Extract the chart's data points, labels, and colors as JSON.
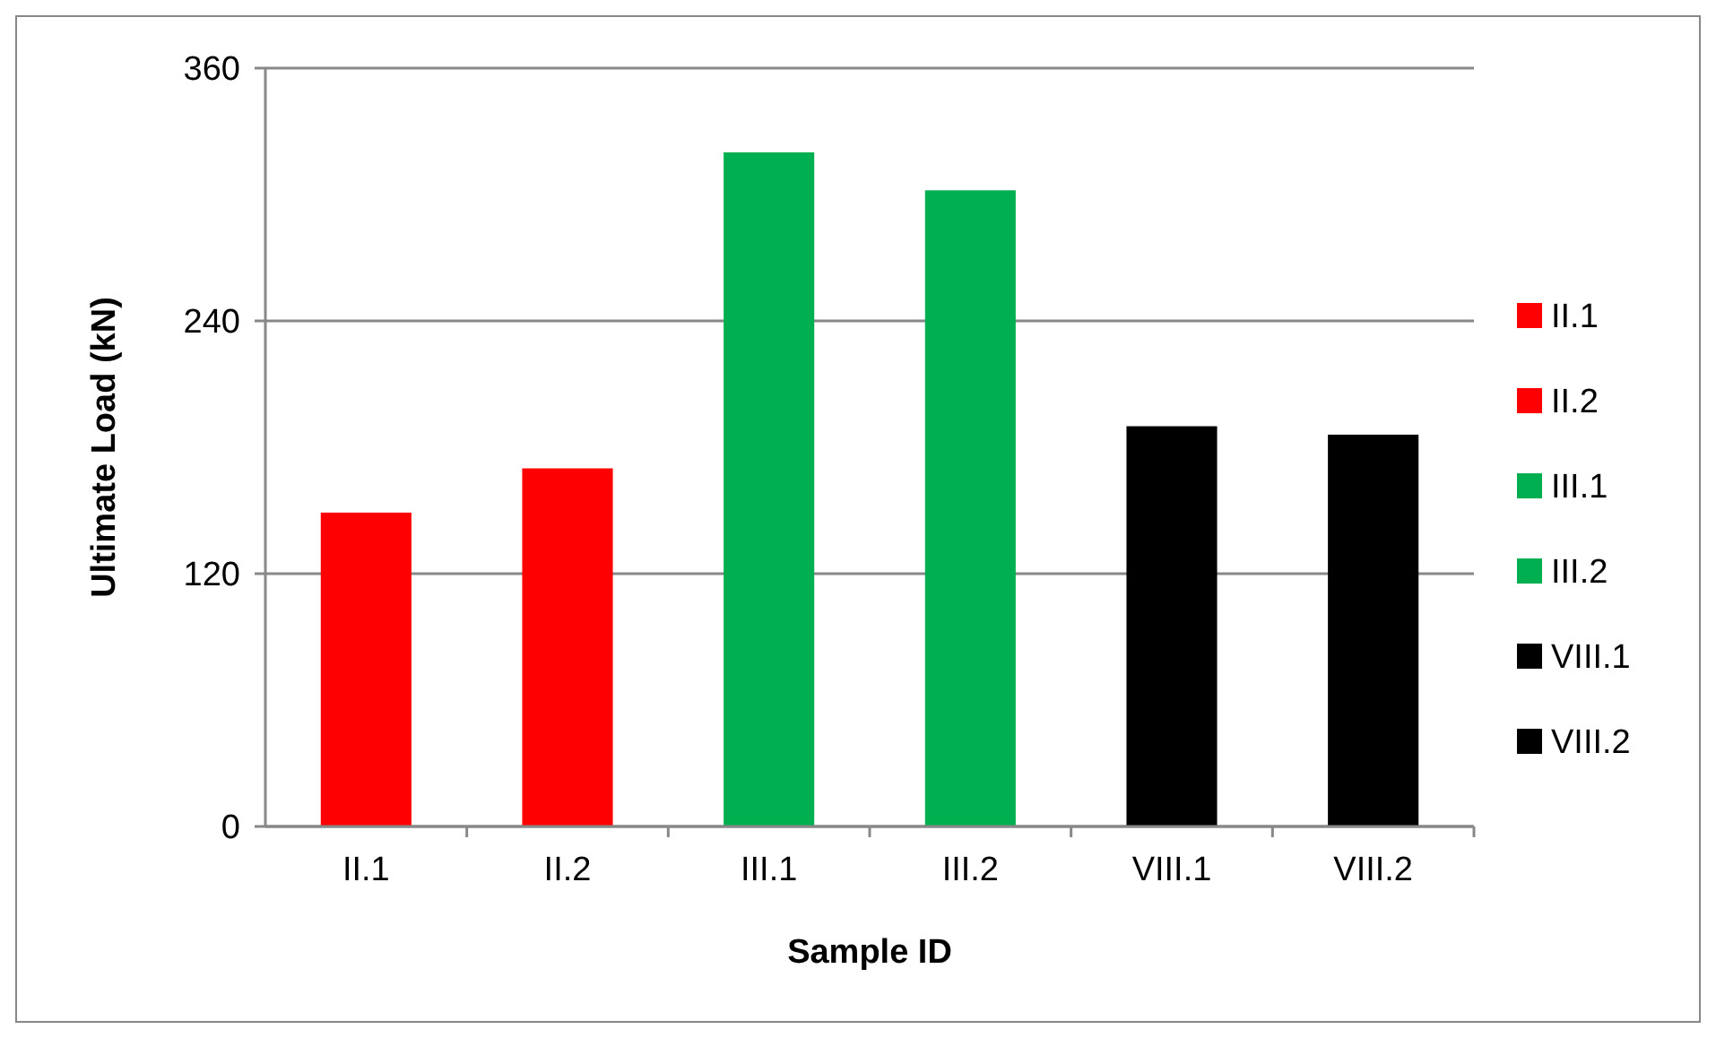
{
  "chart_data": {
    "type": "bar",
    "xlabel": "Sample ID",
    "ylabel": "Ultimate Load (kN)",
    "categories": [
      "II.1",
      "II.2",
      "III.1",
      "III.2",
      "VIII.1",
      "VIII.2"
    ],
    "series": [
      {
        "name": "II.1",
        "color": "#ff0000",
        "values": [
          149,
          null,
          null,
          null,
          null,
          null
        ]
      },
      {
        "name": "II.2",
        "color": "#ff0000",
        "values": [
          null,
          170,
          null,
          null,
          null,
          null
        ]
      },
      {
        "name": "III.1",
        "color": "#00b050",
        "values": [
          null,
          null,
          320,
          null,
          null,
          null
        ]
      },
      {
        "name": "III.2",
        "color": "#00b050",
        "values": [
          null,
          null,
          null,
          302,
          null,
          null
        ]
      },
      {
        "name": "VIII.1",
        "color": "#000000",
        "values": [
          null,
          null,
          null,
          null,
          190,
          null
        ]
      },
      {
        "name": "VIII.2",
        "color": "#000000",
        "values": [
          null,
          null,
          null,
          null,
          null,
          186
        ]
      }
    ],
    "ylim": [
      0,
      360
    ],
    "yticks": [
      0,
      120,
      240,
      360
    ],
    "grid": "y",
    "legend": "right"
  }
}
